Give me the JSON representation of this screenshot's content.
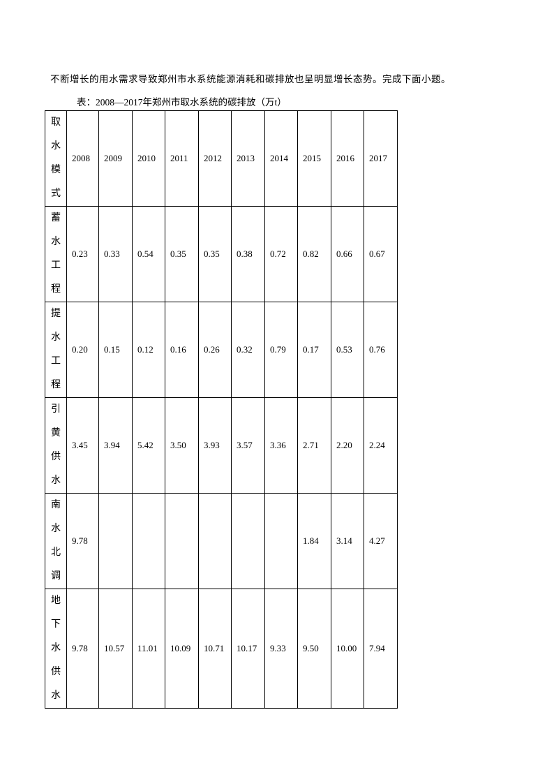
{
  "intro": "不断增长的用水需求导致郑州市水系统能源消耗和碳排放也呈明显增长态势。完成下面小题。",
  "caption": "表：2008—2017年郑州市取水系统的碳排放（万t）",
  "table": {
    "corner": "取水模式",
    "years": [
      "2008",
      "2009",
      "2010",
      "2011",
      "2012",
      "2013",
      "2014",
      "2015",
      "2016",
      "2017"
    ],
    "rows": [
      {
        "label": "蓄水工程",
        "values": [
          "0.23",
          "0.33",
          "0.54",
          "0.35",
          "0.35",
          "0.38",
          "0.72",
          "0.82",
          "0.66",
          "0.67"
        ]
      },
      {
        "label": "提水工程",
        "values": [
          "0.20",
          "0.15",
          "0.12",
          "0.16",
          "0.26",
          "0.32",
          "0.79",
          "0.17",
          "0.53",
          "0.76"
        ]
      },
      {
        "label": "引黄供水",
        "values": [
          "3.45",
          "3.94",
          "5.42",
          "3.50",
          "3.93",
          "3.57",
          "3.36",
          "2.71",
          "2.20",
          "2.24"
        ]
      },
      {
        "label": "南水北调",
        "values": [
          "9.78",
          "",
          "",
          "",
          "",
          "",
          "",
          "1.84",
          "3.14",
          "4.27"
        ]
      },
      {
        "label": "地下水供水",
        "values": [
          "9.78",
          "10.57",
          "11.01",
          "10.09",
          "10.71",
          "10.17",
          "9.33",
          "9.50",
          "10.00",
          "7.94"
        ]
      }
    ]
  }
}
